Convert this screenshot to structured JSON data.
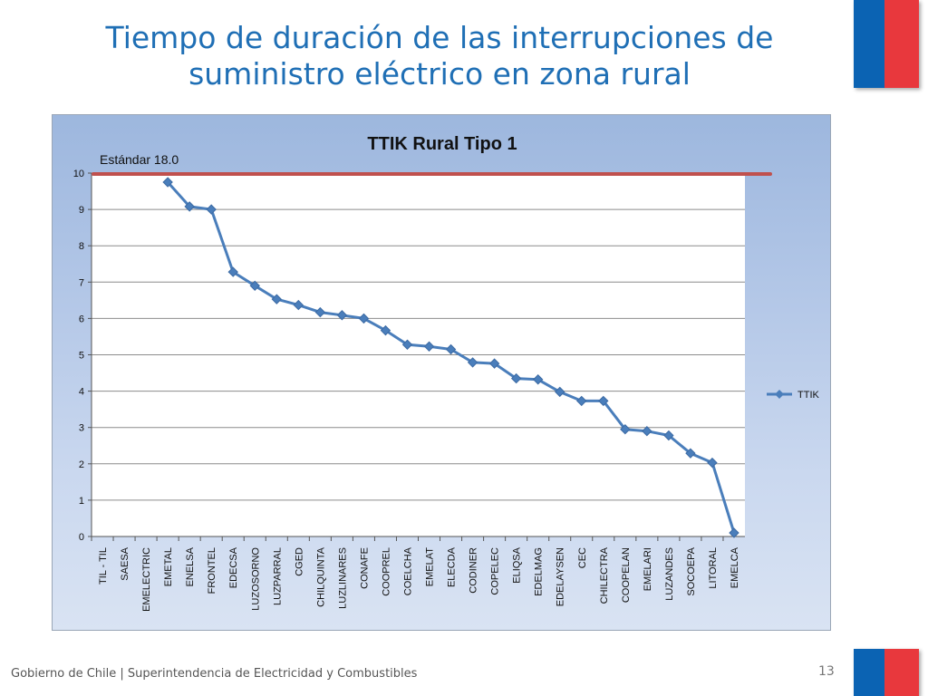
{
  "slide": {
    "title_line1": "Tiempo de duración de las interrupciones de",
    "title_line2": "suministro eléctrico en zona rural",
    "footer": "Gobierno de Chile | Superintendencia de Electricidad y Combustibles",
    "page_number": "13"
  },
  "colors": {
    "title": "#1f6fb5",
    "series_line": "#4a7ebb",
    "standard_line": "#c0504d",
    "flag_blue": "#0b63b3",
    "flag_red": "#e8383d"
  },
  "chart_data": {
    "type": "line",
    "title": "TTIK Rural Tipo 1",
    "xlabel": "",
    "ylabel": "",
    "ylim": [
      0,
      10
    ],
    "yticks": [
      0,
      1,
      2,
      3,
      4,
      5,
      6,
      7,
      8,
      9,
      10
    ],
    "grid": true,
    "legend_position": "right",
    "annotation": "Estándar 18.0",
    "categories": [
      "TIL - TIL",
      "SAESA",
      "EMELECTRIC",
      "EMETAL",
      "ENELSA",
      "FRONTEL",
      "EDECSA",
      "LUZOSORNO",
      "LUZPARRAL",
      "CGED",
      "CHILQUINTA",
      "LUZLINARES",
      "CONAFE",
      "COOPREL",
      "COELCHA",
      "EMELAT",
      "ELECDA",
      "CODINER",
      "COPELEC",
      "ELIQSA",
      "EDELMAG",
      "EDELAYSEN",
      "CEC",
      "CHILECTRA",
      "COOPELAN",
      "EMELARI",
      "LUZANDES",
      "SOCOEPA",
      "LITORAL",
      "EMELCA"
    ],
    "series": [
      {
        "name": "TTIK",
        "values": [
          null,
          null,
          null,
          9.75,
          9.08,
          9.0,
          7.28,
          6.9,
          6.53,
          6.37,
          6.17,
          6.09,
          6.0,
          5.67,
          5.28,
          5.23,
          5.15,
          4.79,
          4.76,
          4.35,
          4.32,
          3.98,
          3.73,
          3.73,
          2.95,
          2.9,
          2.78,
          2.29,
          2.03,
          0.1
        ]
      }
    ]
  }
}
